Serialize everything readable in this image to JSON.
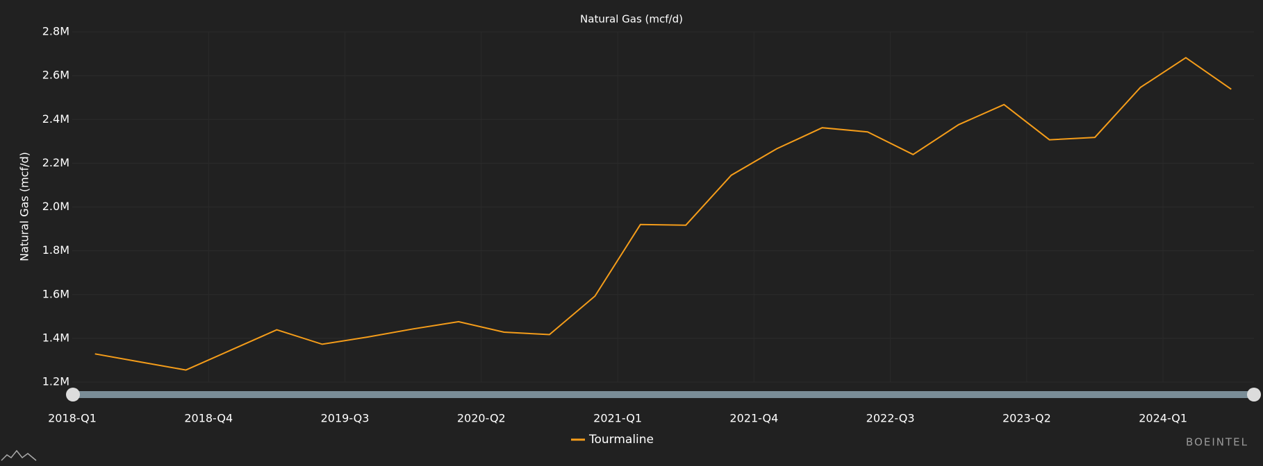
{
  "chart_data": {
    "type": "line",
    "title": "Natural Gas (mcf/d)",
    "y_label": "Natural Gas (mcf/d)",
    "watermark": "BOEINTEL",
    "categories": [
      "2018-Q1",
      null,
      null,
      "2018-Q4",
      null,
      null,
      "2019-Q3",
      null,
      null,
      "2020-Q2",
      null,
      null,
      "2021-Q1",
      null,
      null,
      "2021-Q4",
      null,
      null,
      "2022-Q3",
      null,
      null,
      "2023-Q2",
      null,
      null,
      "2024-Q1",
      null
    ],
    "series": [
      {
        "name": "Tourmaline",
        "color": "#f59d1a",
        "values": [
          1329000,
          1292000,
          1255000,
          1347000,
          1439000,
          1373000,
          1406000,
          1443000,
          1476000,
          1428000,
          1417000,
          1593000,
          1920000,
          1917000,
          2145000,
          2266000,
          2362000,
          2343000,
          2240000,
          2376000,
          2468000,
          2307000,
          2318000,
          2546000,
          2682000,
          2538000
        ]
      }
    ],
    "ylim": [
      1200000,
      2800000
    ],
    "yticks": [
      {
        "value": 1200000,
        "label": "1.2M"
      },
      {
        "value": 1400000,
        "label": "1.4M"
      },
      {
        "value": 1600000,
        "label": "1.6M"
      },
      {
        "value": 1800000,
        "label": "1.8M"
      },
      {
        "value": 2000000,
        "label": "2.0M"
      },
      {
        "value": 2200000,
        "label": "2.2M"
      },
      {
        "value": 2400000,
        "label": "2.4M"
      },
      {
        "value": 2600000,
        "label": "2.6M"
      },
      {
        "value": 2800000,
        "label": "2.8M"
      }
    ],
    "grid": true
  }
}
